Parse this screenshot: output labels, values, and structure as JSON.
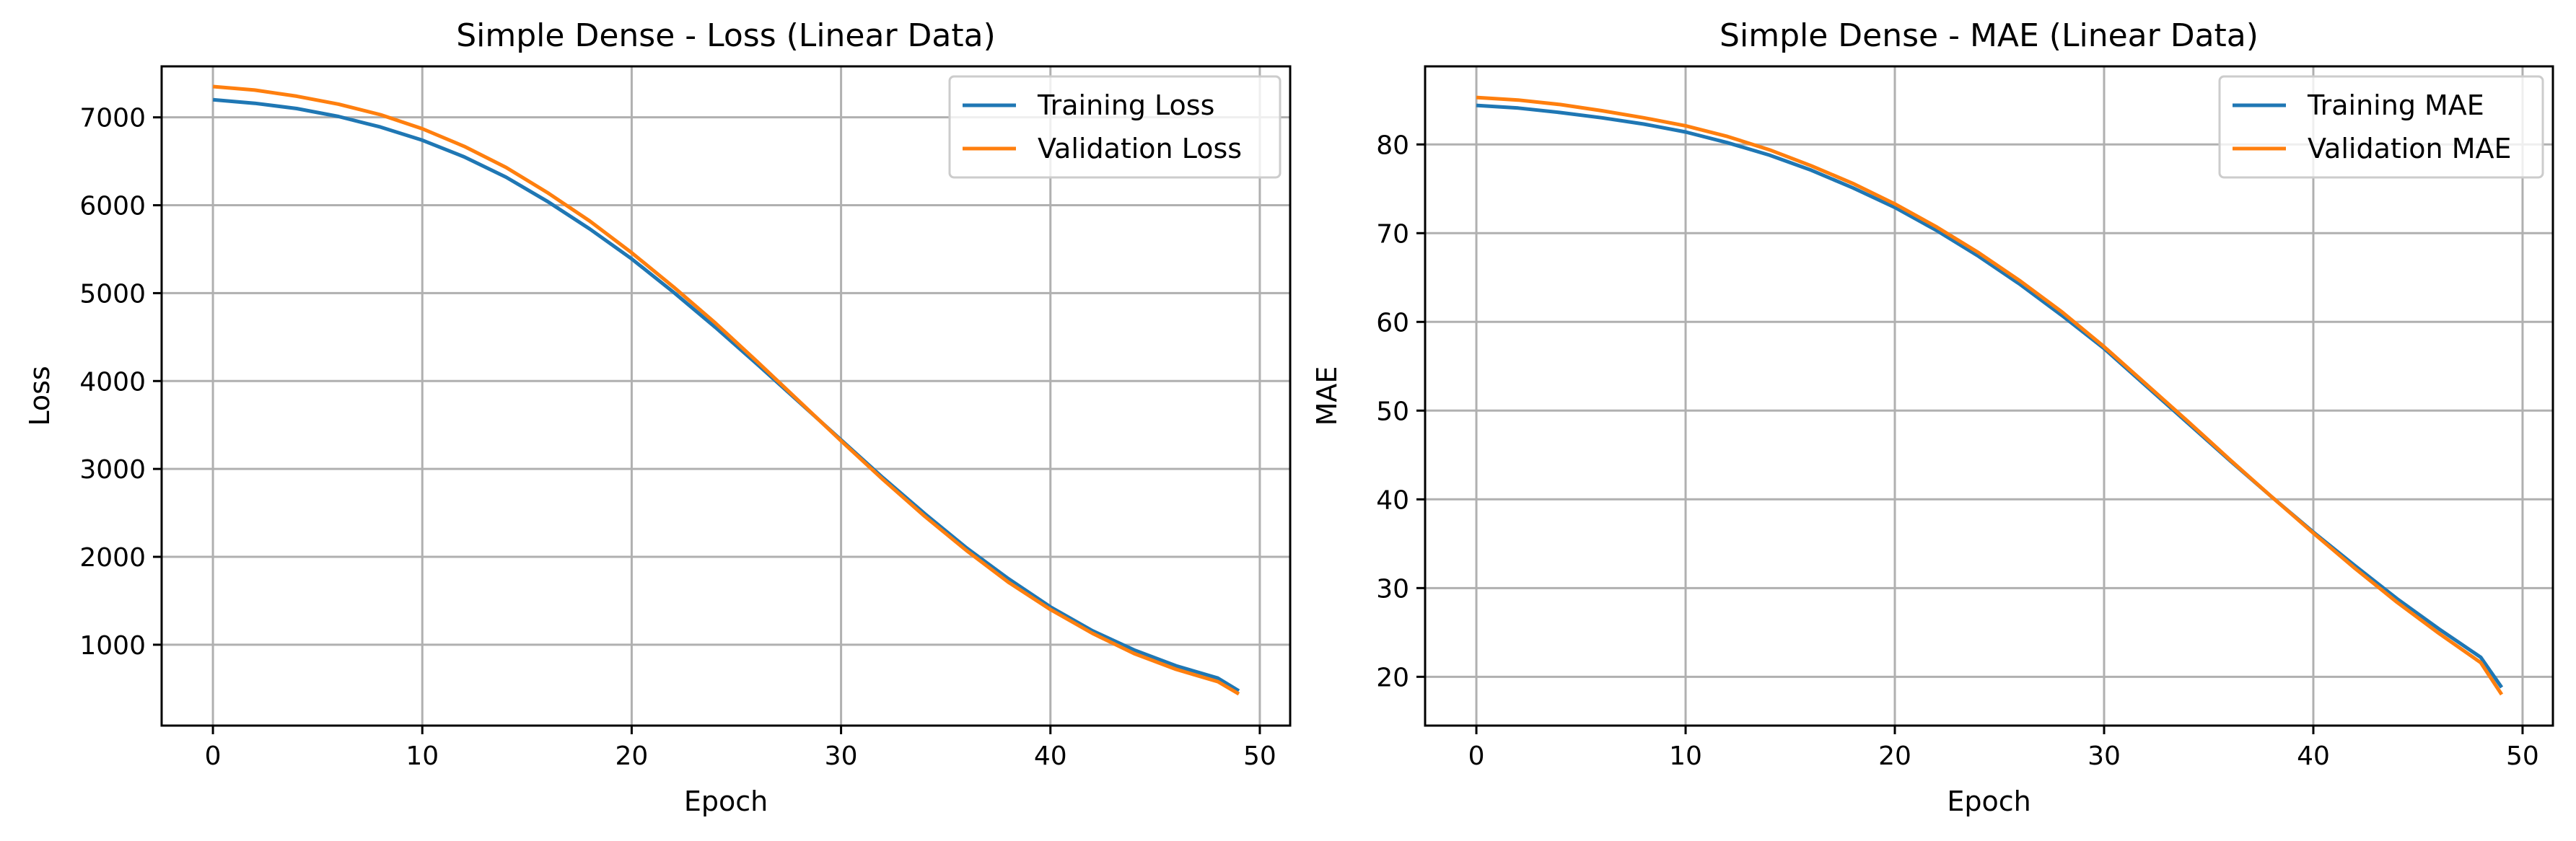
{
  "chart_data": [
    {
      "type": "line",
      "title": "Simple Dense - Loss (Linear Data)",
      "xlabel": "Epoch",
      "ylabel": "Loss",
      "xlim": [
        -2.45,
        51.45
      ],
      "ylim": [
        80,
        7580
      ],
      "xticks": [
        0,
        10,
        20,
        30,
        40,
        50
      ],
      "yticks": [
        1000,
        2000,
        3000,
        4000,
        5000,
        6000,
        7000
      ],
      "grid": true,
      "legend_position": "top-right",
      "series": [
        {
          "name": "Training Loss",
          "color": "#1f77b4",
          "x": [
            0,
            2,
            4,
            6,
            8,
            10,
            12,
            14,
            16,
            18,
            20,
            22,
            24,
            26,
            28,
            30,
            32,
            34,
            36,
            38,
            40,
            42,
            44,
            46,
            48,
            49
          ],
          "values": [
            7200,
            7160,
            7100,
            7010,
            6890,
            6740,
            6550,
            6320,
            6040,
            5730,
            5390,
            5010,
            4610,
            4190,
            3760,
            3330,
            2900,
            2490,
            2100,
            1750,
            1430,
            1160,
            940,
            760,
            620,
            475
          ]
        },
        {
          "name": "Validation Loss",
          "color": "#ff7f0e",
          "x": [
            0,
            2,
            4,
            6,
            8,
            10,
            12,
            14,
            16,
            18,
            20,
            22,
            24,
            26,
            28,
            30,
            32,
            34,
            36,
            38,
            40,
            42,
            44,
            46,
            48,
            49
          ],
          "values": [
            7350,
            7310,
            7240,
            7150,
            7030,
            6870,
            6670,
            6430,
            6140,
            5820,
            5460,
            5070,
            4660,
            4220,
            3770,
            3320,
            2880,
            2460,
            2070,
            1710,
            1400,
            1130,
            900,
            720,
            580,
            440
          ]
        }
      ]
    },
    {
      "type": "line",
      "title": "Simple Dense - MAE (Linear Data)",
      "xlabel": "Epoch",
      "ylabel": "MAE",
      "xlim": [
        -2.45,
        51.45
      ],
      "ylim": [
        14.5,
        88.8
      ],
      "xticks": [
        0,
        10,
        20,
        30,
        40,
        50
      ],
      "yticks": [
        20,
        30,
        40,
        50,
        60,
        70,
        80
      ],
      "grid": true,
      "legend_position": "top-right",
      "series": [
        {
          "name": "Training MAE",
          "color": "#1f77b4",
          "x": [
            0,
            2,
            4,
            6,
            8,
            10,
            12,
            14,
            16,
            18,
            20,
            22,
            24,
            26,
            28,
            30,
            32,
            34,
            36,
            38,
            40,
            42,
            44,
            46,
            48,
            49
          ],
          "values": [
            84.4,
            84.1,
            83.6,
            83.0,
            82.3,
            81.4,
            80.2,
            78.8,
            77.1,
            75.1,
            72.9,
            70.3,
            67.4,
            64.2,
            60.7,
            57.0,
            52.8,
            48.6,
            44.4,
            40.3,
            36.3,
            32.5,
            28.8,
            25.4,
            22.2,
            18.8
          ]
        },
        {
          "name": "Validation MAE",
          "color": "#ff7f0e",
          "x": [
            0,
            2,
            4,
            6,
            8,
            10,
            12,
            14,
            16,
            18,
            20,
            22,
            24,
            26,
            28,
            30,
            32,
            34,
            36,
            38,
            40,
            42,
            44,
            46,
            48,
            49
          ],
          "values": [
            85.3,
            85.0,
            84.5,
            83.8,
            83.0,
            82.1,
            80.9,
            79.4,
            77.6,
            75.6,
            73.3,
            70.7,
            67.8,
            64.6,
            61.1,
            57.2,
            53.0,
            48.8,
            44.5,
            40.3,
            36.2,
            32.2,
            28.4,
            24.9,
            21.6,
            18.0
          ]
        }
      ]
    }
  ]
}
